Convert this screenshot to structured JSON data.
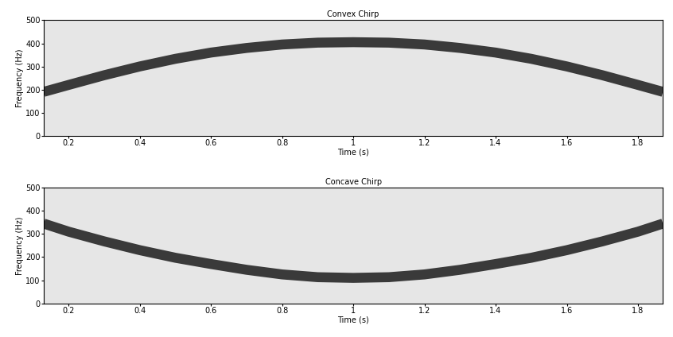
{
  "chart_data": [
    {
      "type": "line",
      "title": "Convex Chirp",
      "x_label": "Time (s)",
      "y_label": "Frequency (Hz)",
      "x": [
        0.13,
        0.2,
        0.3,
        0.4,
        0.5,
        0.6,
        0.7,
        0.8,
        0.9,
        1.0,
        1.1,
        1.2,
        1.3,
        1.4,
        1.5,
        1.6,
        1.7,
        1.8,
        1.87
      ],
      "values": [
        190,
        220,
        262,
        300,
        333,
        360,
        380,
        395,
        403,
        405,
        403,
        395,
        380,
        360,
        333,
        300,
        262,
        220,
        190
      ],
      "color": "#3a3a3a",
      "line_style": "solid",
      "xlim": [
        0.13,
        1.87
      ],
      "xticks": [
        0.2,
        0.4,
        0.6,
        0.8,
        1,
        1.2,
        1.4,
        1.6,
        1.8
      ],
      "ylim": [
        0,
        500
      ],
      "yticks": [
        0,
        100,
        200,
        300,
        400,
        500
      ]
    },
    {
      "type": "line",
      "title": "Concave Chirp",
      "x_label": "Time (s)",
      "y_label": "Frequency (Hz)",
      "x": [
        0.13,
        0.2,
        0.3,
        0.4,
        0.5,
        0.6,
        0.7,
        0.8,
        0.9,
        1.0,
        1.1,
        1.2,
        1.3,
        1.4,
        1.5,
        1.6,
        1.7,
        1.8,
        1.87
      ],
      "values": [
        345,
        310,
        268,
        230,
        197,
        170,
        145,
        125,
        113,
        110,
        113,
        125,
        145,
        170,
        197,
        230,
        268,
        310,
        345
      ],
      "color": "#3a3a3a",
      "line_style": "solid",
      "xlim": [
        0.13,
        1.87
      ],
      "xticks": [
        0.2,
        0.4,
        0.6,
        0.8,
        1,
        1.2,
        1.4,
        1.6,
        1.8
      ],
      "ylim": [
        0,
        500
      ],
      "yticks": [
        0,
        100,
        200,
        300,
        400,
        500
      ]
    }
  ]
}
